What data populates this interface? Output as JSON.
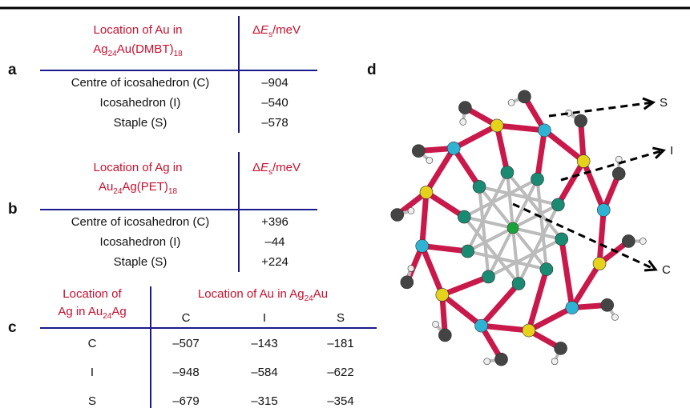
{
  "table_a": {
    "label": "a",
    "location_title": "Location of Au in",
    "formula": [
      "Ag",
      "24",
      "Au(DMBT)",
      "18"
    ],
    "energy_header": [
      "Δ",
      "E",
      "s",
      "/meV"
    ],
    "rows": [
      [
        "Centre of icosahedron (C)",
        "–904"
      ],
      [
        "Icosahedron (I)",
        "–540"
      ],
      [
        "Staple (S)",
        "–578"
      ]
    ]
  },
  "table_b": {
    "label": "b",
    "location_title": "Location of Ag in",
    "formula": [
      "Au",
      "24",
      "Ag(PET)",
      "18"
    ],
    "energy_header": [
      "Δ",
      "E",
      "s",
      "/meV"
    ],
    "rows": [
      [
        "Centre of icosahedron (C)",
        "+396"
      ],
      [
        "Icosahedron (I)",
        "–44"
      ],
      [
        "Staple (S)",
        "+224"
      ]
    ]
  },
  "table_c": {
    "label": "c",
    "row_header_title": "Location of",
    "row_header_formula": [
      "Ag in Au",
      "24",
      "Ag"
    ],
    "column_header_formula": [
      "Location of Au in Ag",
      "24",
      "Au"
    ],
    "columns": [
      "C",
      "I",
      "S"
    ],
    "rows": [
      [
        "C",
        "–507",
        "–143",
        "–181"
      ],
      [
        "I",
        "–948",
        "–584",
        "–622"
      ],
      [
        "S",
        "–679",
        "–315",
        "–354"
      ]
    ]
  },
  "panel_d": {
    "label": "d",
    "pointers": [
      "S",
      "I",
      "C"
    ]
  }
}
